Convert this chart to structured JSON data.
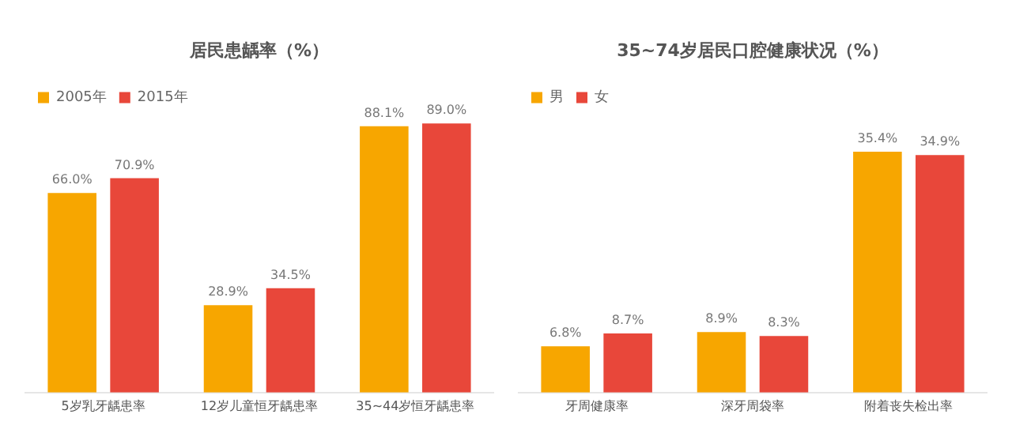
{
  "chart_data": [
    {
      "type": "bar",
      "title": "居民患龋率（%）",
      "categories": [
        "5岁乳牙龋患率",
        "12岁儿童恒牙龋患率",
        "35~44岁恒牙龋患率"
      ],
      "series": [
        {
          "name": "2005年",
          "color": "#f7a600",
          "values": [
            66.0,
            28.9,
            88.1
          ],
          "value_labels": [
            "66.0%",
            "28.9%",
            "88.1%"
          ]
        },
        {
          "name": "2015年",
          "color": "#e8473a",
          "values": [
            70.9,
            34.5,
            89.0
          ],
          "value_labels": [
            "70.9%",
            "34.5%",
            "89.0%"
          ]
        }
      ],
      "legend": "top left",
      "grid": false
    },
    {
      "type": "bar",
      "title": "35~74岁居民口腔健康状况（%）",
      "categories": [
        "牙周健康率",
        "深牙周袋率",
        "附着丧失检出率"
      ],
      "series": [
        {
          "name": "男",
          "color": "#f7a600",
          "values": [
            6.8,
            8.9,
            35.4
          ],
          "value_labels": [
            "6.8%",
            "8.9%",
            "35.4%"
          ]
        },
        {
          "name": "女",
          "color": "#e8473a",
          "values": [
            8.7,
            8.3,
            34.9
          ],
          "value_labels": [
            "8.7%",
            "8.3%",
            "34.9%"
          ]
        }
      ],
      "legend": "top left",
      "grid": false
    }
  ]
}
